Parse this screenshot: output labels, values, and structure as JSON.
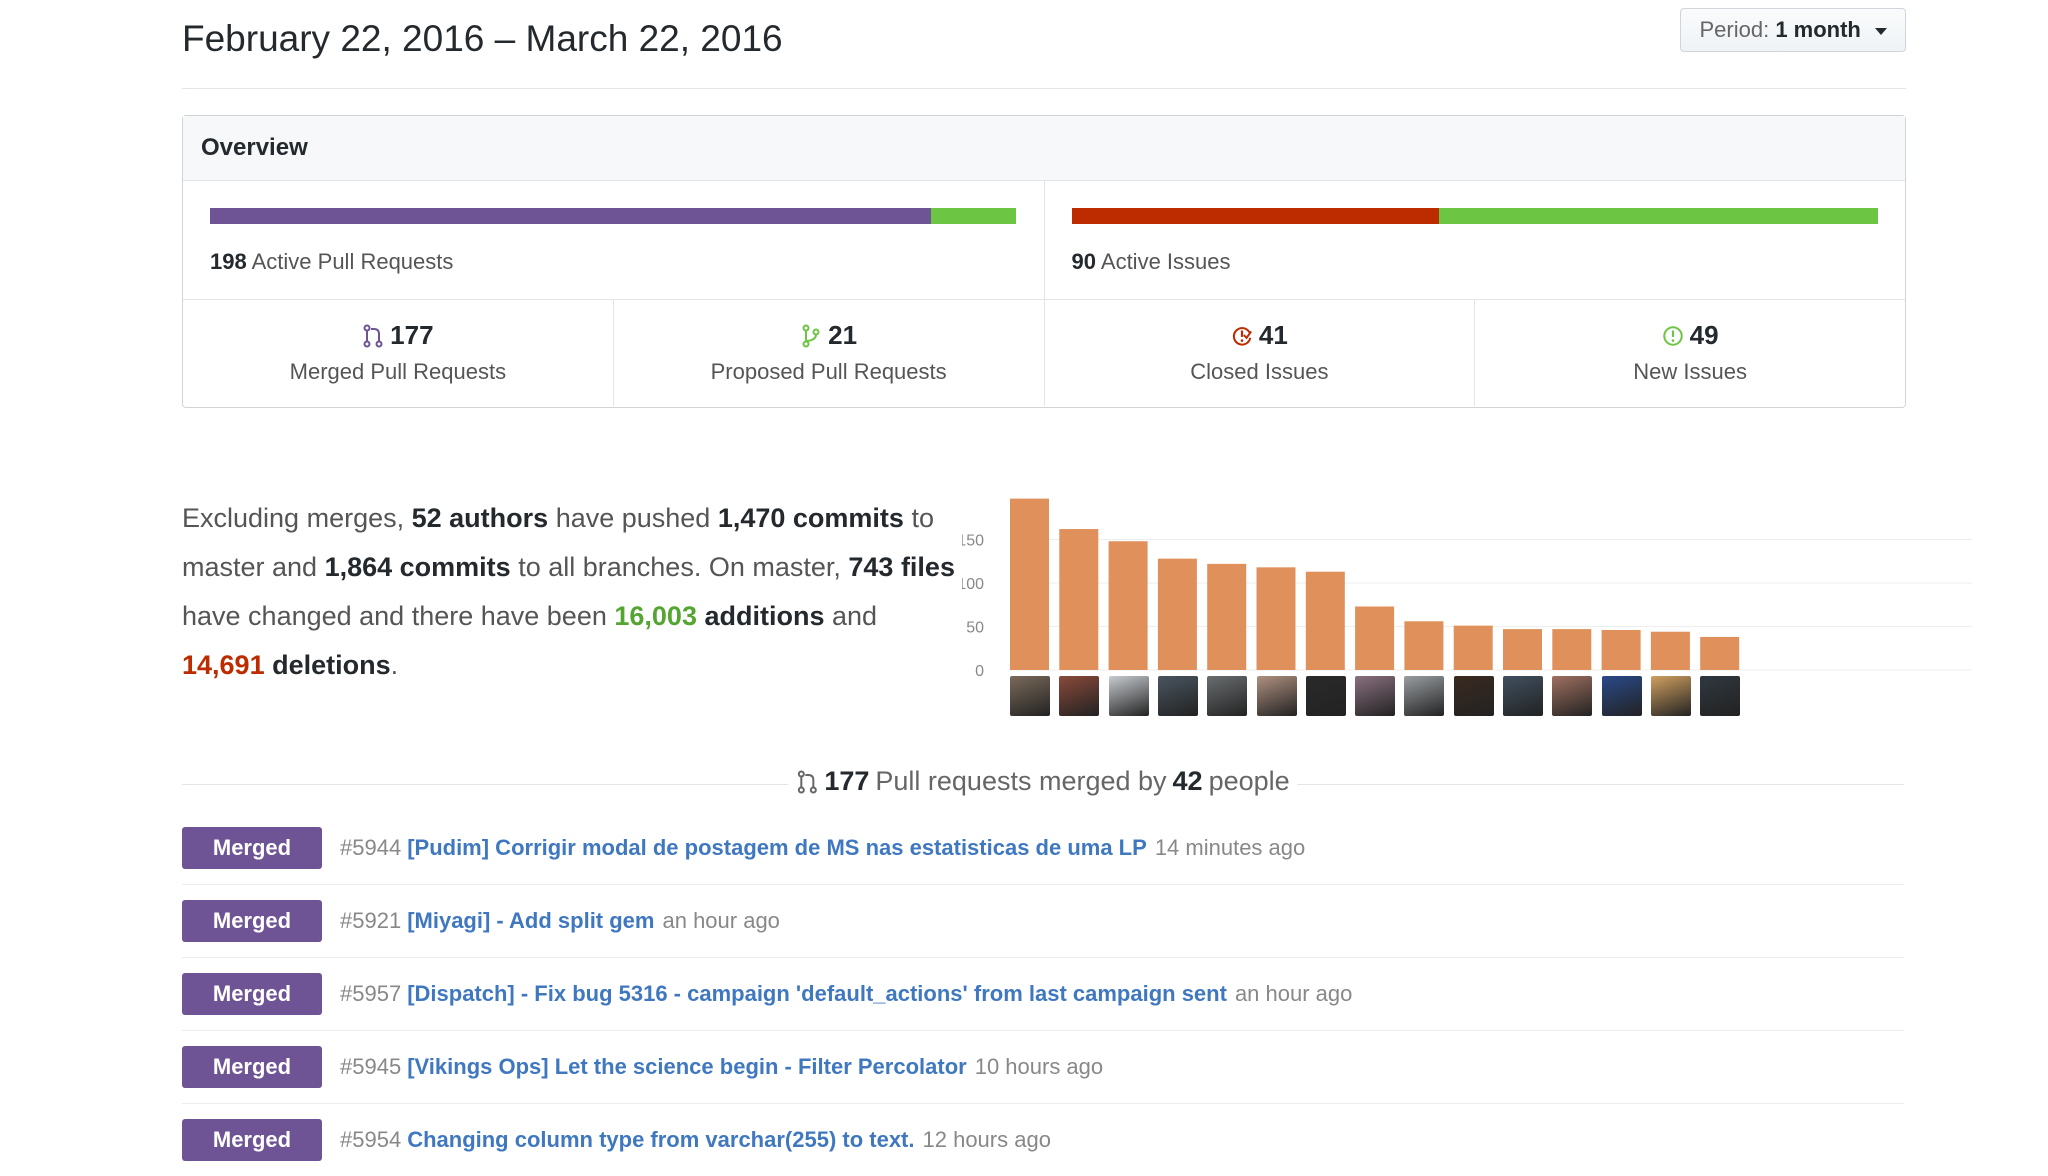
{
  "header": {
    "date_range": "February 22, 2016 – March 22, 2016",
    "period_label": "Period:",
    "period_value": "1 month"
  },
  "overview": {
    "title": "Overview",
    "pull_requests": {
      "active_count": "198",
      "active_label": "Active Pull Requests",
      "merged_fraction": 0.894,
      "colors": {
        "merged": "#6e5494",
        "proposed": "#6cc644"
      }
    },
    "issues": {
      "active_count": "90",
      "active_label": "Active Issues",
      "closed_fraction": 0.456,
      "colors": {
        "closed": "#bd2c00",
        "new": "#6cc644"
      }
    },
    "stats": [
      {
        "icon": "git-merge-icon",
        "count": "177",
        "label": "Merged Pull Requests",
        "color": "#6e5494"
      },
      {
        "icon": "git-pull-request-icon",
        "count": "21",
        "label": "Proposed Pull Requests",
        "color": "#6cc644"
      },
      {
        "icon": "issue-closed-icon",
        "count": "41",
        "label": "Closed Issues",
        "color": "#bd2c00"
      },
      {
        "icon": "issue-opened-icon",
        "count": "49",
        "label": "New Issues",
        "color": "#6cc644"
      }
    ]
  },
  "summary": {
    "p1": "Excluding merges,",
    "authors": "52 authors",
    "p2": "have pushed",
    "commits_master": "1,470 commits",
    "p3": "to master and",
    "commits_all": "1,864 commits",
    "p4": "to all branches. On master,",
    "files": "743 files",
    "p5": "have changed and there have been",
    "additions_num": "16,003",
    "additions_word": "additions",
    "p6": "and",
    "deletions_num": "14,691",
    "deletions_word": "deletions",
    "p7": "."
  },
  "chart_data": {
    "type": "bar",
    "categories": [
      "",
      "",
      "",
      "",
      "",
      "",
      "",
      "",
      "",
      "",
      "",
      "",
      "",
      "",
      ""
    ],
    "values": [
      197,
      162,
      148,
      128,
      122,
      118,
      113,
      73,
      56,
      51,
      47,
      47,
      46,
      44,
      38
    ],
    "yticks": [
      "0",
      "50",
      "100",
      "150"
    ],
    "ylim": [
      0,
      200
    ],
    "bar_color": "#e0905b",
    "grid": true
  },
  "avatars": [
    "#7a6a5a",
    "#8a4a3a",
    "#c8ccd0",
    "#4a5560",
    "#6a6e70",
    "#b09080",
    "#2a2a2a",
    "#8a7080",
    "#9a9ea2",
    "#3a2a20",
    "#405060",
    "#a07060",
    "#2a4a8a",
    "#d0a060",
    "#303840"
  ],
  "merged_heading": {
    "count": "177",
    "text1": "Pull requests merged by",
    "people": "42",
    "text2": "people"
  },
  "pull_requests": [
    {
      "badge": "Merged",
      "number": "#5944",
      "title": "[Pudim] Corrigir modal de postagem de MS nas estatisticas de uma LP",
      "time": "14 minutes ago"
    },
    {
      "badge": "Merged",
      "number": "#5921",
      "title": "[Miyagi] - Add split gem",
      "time": "an hour ago"
    },
    {
      "badge": "Merged",
      "number": "#5957",
      "title": "[Dispatch] - Fix bug 5316 - campaign 'default_actions' from last campaign sent",
      "time": "an hour ago"
    },
    {
      "badge": "Merged",
      "number": "#5945",
      "title": "[Vikings Ops] Let the science begin - Filter Percolator",
      "time": "10 hours ago"
    },
    {
      "badge": "Merged",
      "number": "#5954",
      "title": "Changing column type from varchar(255) to text.",
      "time": "12 hours ago"
    }
  ]
}
